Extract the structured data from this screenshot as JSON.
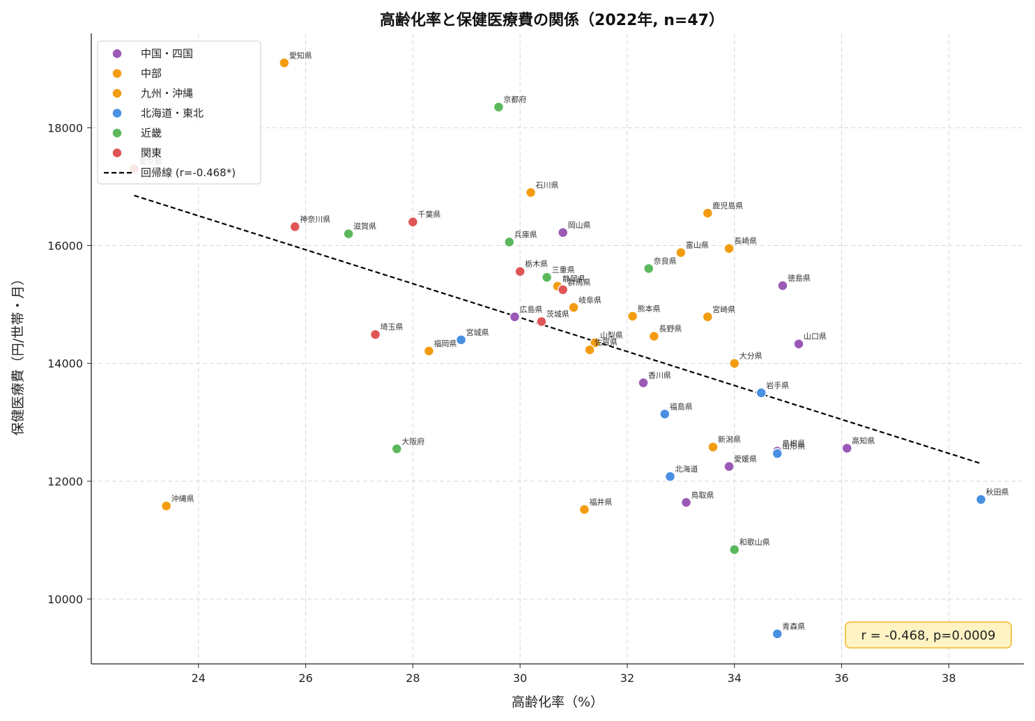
{
  "chart_data": {
    "type": "scatter",
    "title": "高齢化率と保健医療費の関係（2022年, n=47）",
    "xlabel": "高齢化率（%）",
    "ylabel": "保健医療費（円/世帯・月）",
    "xlim": [
      22.0,
      39.4
    ],
    "ylim": [
      8900,
      19600
    ],
    "xticks": [
      24,
      26,
      28,
      30,
      32,
      34,
      36,
      38
    ],
    "yticks": [
      10000,
      12000,
      14000,
      16000,
      18000
    ],
    "grid": true,
    "legend_position": "top-left",
    "regions": [
      {
        "name": "中国・四国",
        "color": "#9b59b6"
      },
      {
        "name": "中部",
        "color": "#f39c12"
      },
      {
        "name": "九州・沖縄",
        "color": "#f39c12"
      },
      {
        "name": "北海道・東北",
        "color": "#4a90e2"
      },
      {
        "name": "近畿",
        "color": "#5cb85c"
      },
      {
        "name": "関東",
        "color": "#e05656"
      }
    ],
    "regression": {
      "label": "回帰線 (r=-0.468*)",
      "x": [
        22.8,
        38.6
      ],
      "y": [
        16850,
        12300
      ],
      "color": "#000000"
    },
    "annotation": "r = -0.468, p=0.0009",
    "points": [
      {
        "label": "東京都",
        "region": "関東",
        "x": 22.8,
        "y": 17300
      },
      {
        "label": "愛知県",
        "region": "中部",
        "x": 25.6,
        "y": 19100
      },
      {
        "label": "京都府",
        "region": "近畿",
        "x": 29.6,
        "y": 18350
      },
      {
        "label": "石川県",
        "region": "中部",
        "x": 30.2,
        "y": 16900
      },
      {
        "label": "神奈川県",
        "region": "関東",
        "x": 25.8,
        "y": 16320
      },
      {
        "label": "滋賀県",
        "region": "近畿",
        "x": 26.8,
        "y": 16200
      },
      {
        "label": "千葉県",
        "region": "関東",
        "x": 28.0,
        "y": 16400
      },
      {
        "label": "兵庫県",
        "region": "近畿",
        "x": 29.8,
        "y": 16060
      },
      {
        "label": "岡山県",
        "region": "中国・四国",
        "x": 30.8,
        "y": 16220
      },
      {
        "label": "鹿児島県",
        "region": "九州・沖縄",
        "x": 33.5,
        "y": 16550
      },
      {
        "label": "長崎県",
        "region": "九州・沖縄",
        "x": 33.9,
        "y": 15950
      },
      {
        "label": "富山県",
        "region": "中部",
        "x": 33.0,
        "y": 15880
      },
      {
        "label": "栃木県",
        "region": "関東",
        "x": 30.0,
        "y": 15560
      },
      {
        "label": "三重県",
        "region": "近畿",
        "x": 30.5,
        "y": 15460
      },
      {
        "label": "静岡県",
        "region": "中部",
        "x": 30.7,
        "y": 15310
      },
      {
        "label": "群馬県",
        "region": "関東",
        "x": 30.8,
        "y": 15250
      },
      {
        "label": "奈良県",
        "region": "近畿",
        "x": 32.4,
        "y": 15610
      },
      {
        "label": "徳島県",
        "region": "中国・四国",
        "x": 34.9,
        "y": 15320
      },
      {
        "label": "岐阜県",
        "region": "中部",
        "x": 31.0,
        "y": 14950
      },
      {
        "label": "広島県",
        "region": "中国・四国",
        "x": 29.9,
        "y": 14790
      },
      {
        "label": "茨城県",
        "region": "関東",
        "x": 30.4,
        "y": 14710
      },
      {
        "label": "熊本県",
        "region": "九州・沖縄",
        "x": 32.1,
        "y": 14800
      },
      {
        "label": "宮崎県",
        "region": "九州・沖縄",
        "x": 33.5,
        "y": 14790
      },
      {
        "label": "埼玉県",
        "region": "関東",
        "x": 27.3,
        "y": 14490
      },
      {
        "label": "宮城県",
        "region": "北海道・東北",
        "x": 28.9,
        "y": 14400
      },
      {
        "label": "福岡県",
        "region": "九州・沖縄",
        "x": 28.3,
        "y": 14210
      },
      {
        "label": "山梨県",
        "region": "中部",
        "x": 31.4,
        "y": 14350
      },
      {
        "label": "佐賀県",
        "region": "九州・沖縄",
        "x": 31.3,
        "y": 14230
      },
      {
        "label": "長野県",
        "region": "中部",
        "x": 32.5,
        "y": 14460
      },
      {
        "label": "山口県",
        "region": "中国・四国",
        "x": 35.2,
        "y": 14330
      },
      {
        "label": "大分県",
        "region": "九州・沖縄",
        "x": 34.0,
        "y": 14000
      },
      {
        "label": "香川県",
        "region": "中国・四国",
        "x": 32.3,
        "y": 13670
      },
      {
        "label": "岩手県",
        "region": "北海道・東北",
        "x": 34.5,
        "y": 13500
      },
      {
        "label": "福島県",
        "region": "北海道・東北",
        "x": 32.7,
        "y": 13140
      },
      {
        "label": "大阪府",
        "region": "近畿",
        "x": 27.7,
        "y": 12550
      },
      {
        "label": "新潟県",
        "region": "中部",
        "x": 33.6,
        "y": 12580
      },
      {
        "label": "島根県",
        "region": "中国・四国",
        "x": 34.8,
        "y": 12510
      },
      {
        "label": "山形県",
        "region": "北海道・東北",
        "x": 34.8,
        "y": 12470
      },
      {
        "label": "高知県",
        "region": "中国・四国",
        "x": 36.1,
        "y": 12560
      },
      {
        "label": "愛媛県",
        "region": "中国・四国",
        "x": 33.9,
        "y": 12250
      },
      {
        "label": "北海道",
        "region": "北海道・東北",
        "x": 32.8,
        "y": 12080
      },
      {
        "label": "沖縄県",
        "region": "九州・沖縄",
        "x": 23.4,
        "y": 11580
      },
      {
        "label": "福井県",
        "region": "中部",
        "x": 31.2,
        "y": 11520
      },
      {
        "label": "鳥取県",
        "region": "中国・四国",
        "x": 33.1,
        "y": 11640
      },
      {
        "label": "秋田県",
        "region": "北海道・東北",
        "x": 38.6,
        "y": 11690
      },
      {
        "label": "和歌山県",
        "region": "近畿",
        "x": 34.0,
        "y": 10840
      },
      {
        "label": "青森県",
        "region": "北海道・東北",
        "x": 34.8,
        "y": 9410
      }
    ]
  }
}
